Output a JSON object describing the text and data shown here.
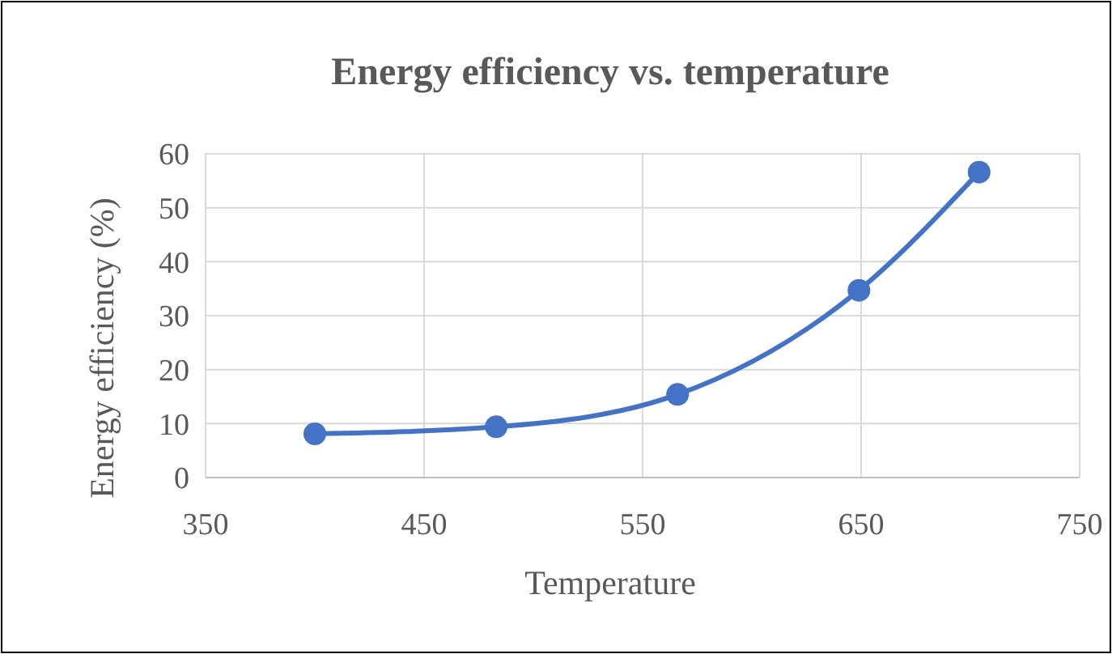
{
  "chart_data": {
    "type": "line",
    "title": "Energy efficiency vs. temperature",
    "xlabel": "Temperature",
    "ylabel": "Energy efficiency (%)",
    "x": [
      400,
      483,
      566,
      649,
      704
    ],
    "series": [
      {
        "color": "#4472c4",
        "values": [
          8.1,
          9.4,
          15.4,
          34.7,
          56.6
        ]
      }
    ],
    "xlim": [
      350,
      750
    ],
    "xticks": [
      350,
      450,
      550,
      650,
      750
    ],
    "ylim": [
      0,
      60
    ],
    "yticks": [
      0,
      10,
      20,
      30,
      40,
      50,
      60
    ],
    "grid": true,
    "marker": "circle",
    "line_style": "solid"
  }
}
